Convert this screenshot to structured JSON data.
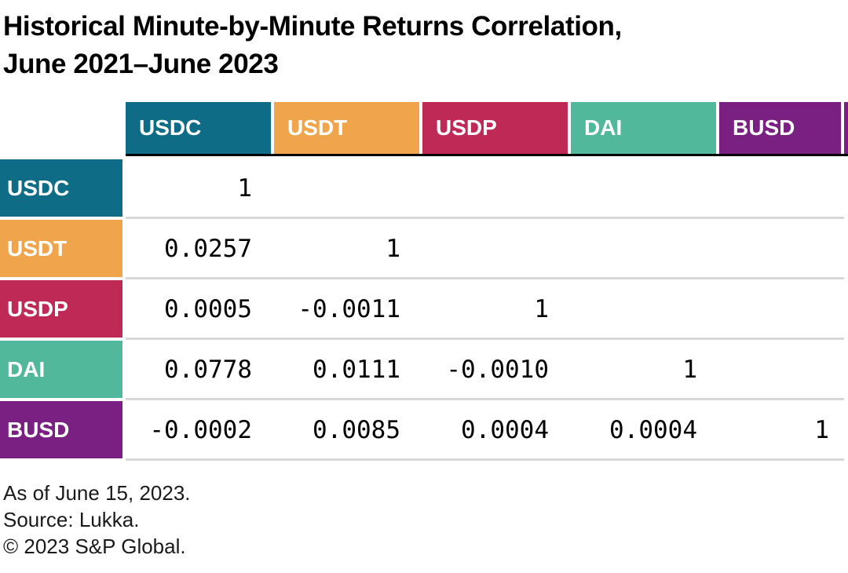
{
  "title": {
    "line1": "Historical Minute-by-Minute Returns Correlation,",
    "line2": "June 2021–June 2023"
  },
  "colors": {
    "usdc": "#0E6C86",
    "usdt": "#F0A54C",
    "usdp": "#BE2956",
    "dai": "#52B89B",
    "busd": "#792082",
    "header_rule": "#000000",
    "row_separator": "#D8D8D8"
  },
  "matrix": {
    "columns": [
      "USDC",
      "USDT",
      "USDP",
      "DAI",
      "BUSD"
    ],
    "rows": [
      {
        "label": "USDC",
        "values": [
          "1",
          "",
          "",
          "",
          ""
        ]
      },
      {
        "label": "USDT",
        "values": [
          "0.0257",
          "1",
          "",
          "",
          ""
        ]
      },
      {
        "label": "USDP",
        "values": [
          "0.0005",
          "-0.0011",
          "1",
          "",
          ""
        ]
      },
      {
        "label": "DAI",
        "values": [
          "0.0778",
          "0.0111",
          "-0.0010",
          "1",
          ""
        ]
      },
      {
        "label": "BUSD",
        "values": [
          "-0.0002",
          "0.0085",
          "0.0004",
          "0.0004",
          "1"
        ]
      }
    ]
  },
  "footer": {
    "line1": "As of June 15, 2023.",
    "line2": "Source: Lukka.",
    "line3": "© 2023 S&P Global."
  },
  "chart_data": {
    "type": "table",
    "subtype": "correlation-matrix",
    "title": "Historical Minute-by-Minute Returns Correlation, June 2021–June 2023",
    "categories": [
      "USDC",
      "USDT",
      "USDP",
      "DAI",
      "BUSD"
    ],
    "matrix": [
      [
        1,
        null,
        null,
        null,
        null
      ],
      [
        0.0257,
        1,
        null,
        null,
        null
      ],
      [
        0.0005,
        -0.0011,
        1,
        null,
        null
      ],
      [
        0.0778,
        0.0111,
        -0.001,
        1,
        null
      ],
      [
        -0.0002,
        0.0085,
        0.0004,
        0.0004,
        1
      ]
    ],
    "annotations": [
      "As of June 15, 2023.",
      "Source: Lukka.",
      "© 2023 S&P Global."
    ],
    "layout": {
      "header_text_color": "#ffffff",
      "value_alignment": "right",
      "lower_triangle_only": true
    }
  }
}
